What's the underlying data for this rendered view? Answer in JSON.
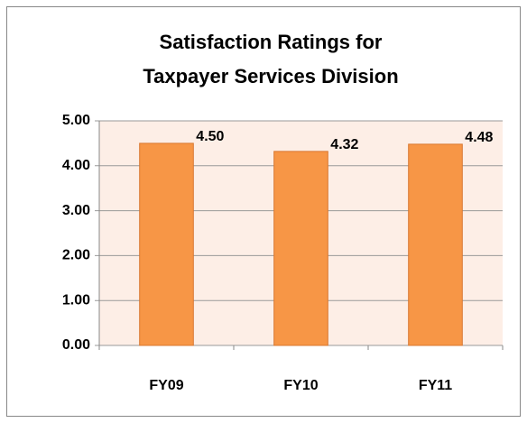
{
  "chart_data": {
    "type": "bar",
    "title": [
      "Satisfaction Ratings for",
      "Taxpayer Services Division"
    ],
    "categories": [
      "FY09",
      "FY10",
      "FY11"
    ],
    "values": [
      4.5,
      4.32,
      4.48
    ],
    "value_labels": [
      "4.50",
      "4.32",
      "4.48"
    ],
    "color": "#f79646",
    "ylim": [
      0,
      5
    ],
    "yticks": [
      {
        "value": 0,
        "label": "0.00"
      },
      {
        "value": 1,
        "label": "1.00"
      },
      {
        "value": 2,
        "label": "2.00"
      },
      {
        "value": 3,
        "label": "3.00"
      },
      {
        "value": 4,
        "label": "4.00"
      },
      {
        "value": 5,
        "label": "5.00"
      }
    ],
    "grid": true
  }
}
